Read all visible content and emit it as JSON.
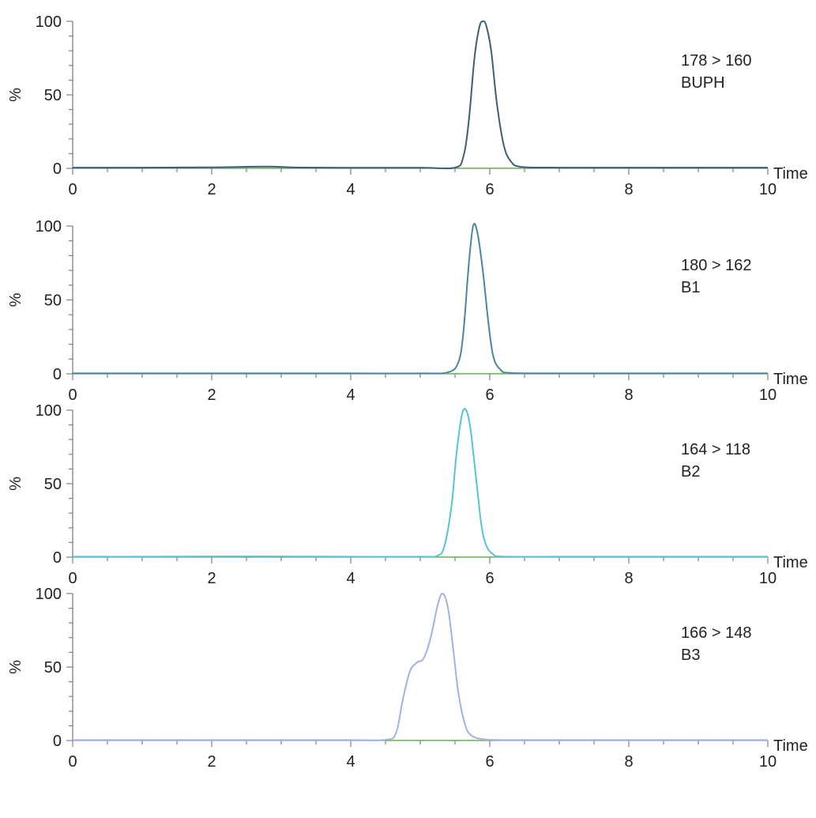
{
  "chart_data": [
    {
      "type": "line",
      "panel": 1,
      "xlabel": "Time",
      "ylabel": "%",
      "xlim": [
        0,
        10
      ],
      "ylim": [
        0,
        100
      ],
      "x_ticks": [
        "0",
        "2",
        "4",
        "6",
        "8",
        "10"
      ],
      "y_ticks": [
        "0",
        "50",
        "100"
      ],
      "annotation_lines": [
        "178 > 160",
        "BUPH"
      ],
      "colors": {
        "trace": "#3c5f78",
        "baseline": "#7fbf6a"
      },
      "series": [
        {
          "x": [
            0,
            1,
            2,
            2.8,
            3.2,
            4,
            5,
            5.5,
            5.62,
            5.7,
            5.78,
            5.85,
            5.9,
            5.95,
            6.02,
            6.1,
            6.2,
            6.3,
            6.45,
            7,
            8,
            9,
            10
          ],
          "y": [
            0.5,
            0.5,
            0.7,
            1.2,
            0.6,
            0.4,
            0.4,
            0.5,
            8,
            33,
            75,
            96,
            100,
            97,
            80,
            45,
            16,
            5,
            1,
            0.5,
            0.5,
            0.5,
            0.5
          ]
        }
      ]
    },
    {
      "type": "line",
      "panel": 2,
      "xlabel": "Time",
      "ylabel": "%",
      "xlim": [
        0,
        10
      ],
      "ylim": [
        0,
        100
      ],
      "x_ticks": [
        "0",
        "2",
        "4",
        "6",
        "8",
        "10"
      ],
      "y_ticks": [
        "0",
        "50",
        "100"
      ],
      "annotation_lines": [
        "180 > 162",
        "B1"
      ],
      "colors": {
        "trace": "#4a86a0",
        "baseline": "#7fbf6a"
      },
      "series": [
        {
          "x": [
            0,
            1,
            2,
            3,
            4,
            5,
            5.4,
            5.55,
            5.62,
            5.7,
            5.76,
            5.82,
            5.9,
            5.98,
            6.05,
            6.15,
            6.3,
            7,
            8,
            9,
            10
          ],
          "y": [
            0.3,
            0.3,
            0.3,
            0.3,
            0.3,
            0.3,
            1,
            8,
            28,
            75,
            100,
            96,
            70,
            35,
            12,
            3,
            0.6,
            0.3,
            0.3,
            0.3,
            0.3
          ]
        }
      ]
    },
    {
      "type": "line",
      "panel": 3,
      "xlabel": "Time",
      "ylabel": "%",
      "xlim": [
        0,
        10
      ],
      "ylim": [
        0,
        100
      ],
      "x_ticks": [
        "0",
        "2",
        "4",
        "6",
        "8",
        "10"
      ],
      "y_ticks": [
        "0",
        "50",
        "100"
      ],
      "annotation_lines": [
        "164 > 118",
        "B2"
      ],
      "colors": {
        "trace": "#56c4d2",
        "baseline": "#7fbf6a"
      },
      "series": [
        {
          "x": [
            0,
            1,
            2,
            3,
            4,
            5,
            5.25,
            5.35,
            5.45,
            5.52,
            5.6,
            5.66,
            5.72,
            5.8,
            5.88,
            5.95,
            6.05,
            6.2,
            7,
            8,
            9,
            10
          ],
          "y": [
            0.3,
            0.3,
            0.5,
            0.5,
            0.3,
            0.3,
            1,
            8,
            35,
            70,
            97,
            100,
            88,
            55,
            22,
            8,
            2,
            0.4,
            0.3,
            0.3,
            0.3,
            0.3
          ]
        }
      ]
    },
    {
      "type": "line",
      "panel": 4,
      "xlabel": "Time",
      "ylabel": "%",
      "xlim": [
        0,
        10
      ],
      "ylim": [
        0,
        100
      ],
      "x_ticks": [
        "0",
        "2",
        "4",
        "6",
        "8",
        "10"
      ],
      "y_ticks": [
        "0",
        "50",
        "100"
      ],
      "annotation_lines": [
        "166 > 148",
        "B3"
      ],
      "colors": {
        "trace": "#9fb3e6",
        "baseline": "#7fbf6a"
      },
      "series": [
        {
          "x": [
            0,
            1,
            2,
            3,
            4,
            4.5,
            4.65,
            4.75,
            4.85,
            4.95,
            5.05,
            5.15,
            5.25,
            5.32,
            5.4,
            5.48,
            5.55,
            5.65,
            5.75,
            5.9,
            6.1,
            7,
            8,
            9,
            10
          ],
          "y": [
            0.3,
            0.3,
            0.3,
            0.3,
            0.3,
            0.5,
            5,
            28,
            47,
            53,
            56,
            70,
            92,
            100,
            90,
            60,
            32,
            10,
            3,
            1,
            0.4,
            0.3,
            0.3,
            0.3,
            0.3
          ]
        }
      ]
    }
  ]
}
